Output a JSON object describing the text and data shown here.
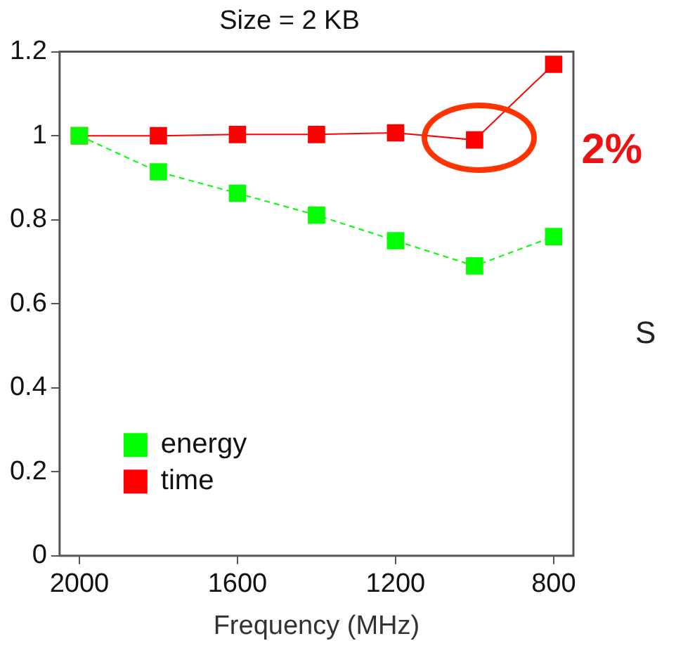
{
  "chart_data": {
    "type": "line",
    "title": "Size = 2 KB",
    "xlabel": "Frequency (MHz)",
    "x": [
      2000,
      1800,
      1600,
      1400,
      1200,
      1000,
      800
    ],
    "series": [
      {
        "name": "time",
        "color": "#ff0000",
        "values": [
          1,
          1,
          1.003,
          1.003,
          1.007,
          0.99,
          1.17
        ],
        "line_style": "solid"
      },
      {
        "name": "energy",
        "color": "#00ff00",
        "values": [
          1,
          0.914,
          0.863,
          0.811,
          0.75,
          0.69,
          0.76
        ],
        "line_style": "dashed"
      }
    ],
    "xlim": [
      2050,
      750
    ],
    "xticks": [
      2000,
      1600,
      1200,
      800
    ],
    "ylim": [
      0,
      1.2
    ],
    "yticks": [
      0,
      0.2,
      0.4,
      0.6,
      0.8,
      1,
      1.2
    ],
    "marker": "square",
    "grid": false,
    "legend": "bottom left",
    "annotations": [
      {
        "text": "2%",
        "x": 1000,
        "y": 0.99
      },
      "S"
    ]
  }
}
